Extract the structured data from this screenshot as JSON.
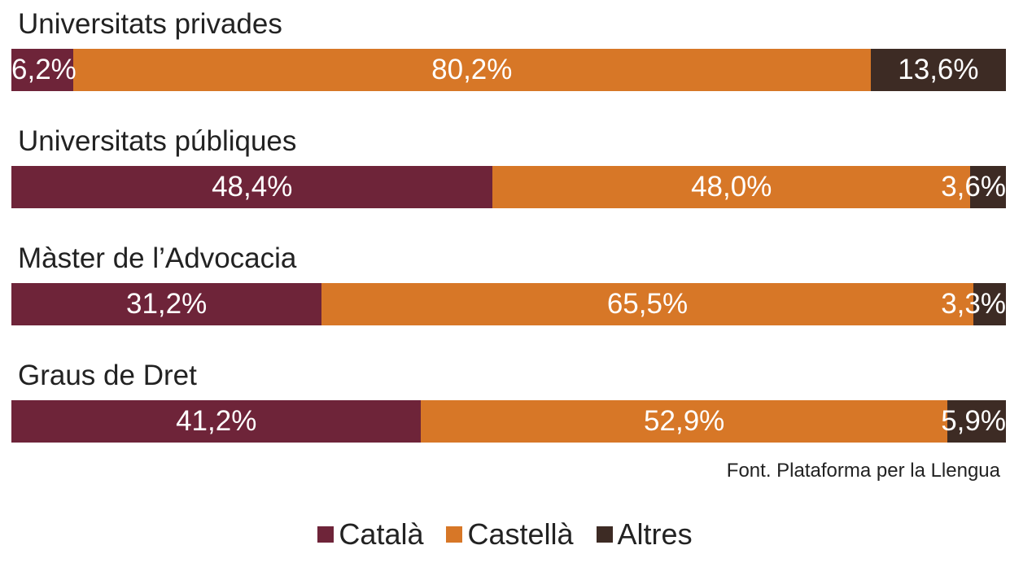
{
  "chart_data": {
    "type": "bar",
    "orientation": "horizontal-stacked-100",
    "title": "",
    "categories": [
      "Universitats privades",
      "Universitats públiques",
      "Màster de l’Advocacia",
      "Graus de Dret"
    ],
    "series": [
      {
        "name": "Català",
        "color": "#6e2439",
        "values": [
          6.2,
          48.4,
          31.2,
          41.2
        ],
        "labels": [
          "6,2%",
          "48,4%",
          "31,2%",
          "41,2%"
        ]
      },
      {
        "name": "Castellà",
        "color": "#d77727",
        "values": [
          80.2,
          48.0,
          65.5,
          52.9
        ],
        "labels": [
          "80,2%",
          "48,0%",
          "65,5%",
          "52,9%"
        ]
      },
      {
        "name": "Altres",
        "color": "#3d2b24",
        "values": [
          13.6,
          3.6,
          3.3,
          5.9
        ],
        "labels": [
          "13,6%",
          "3,6%",
          "3,3%",
          "5,9%"
        ]
      }
    ],
    "xlim": [
      0,
      100
    ],
    "grid": false,
    "legend": "bottom"
  },
  "source": "Font. Plataforma per la Llengua"
}
